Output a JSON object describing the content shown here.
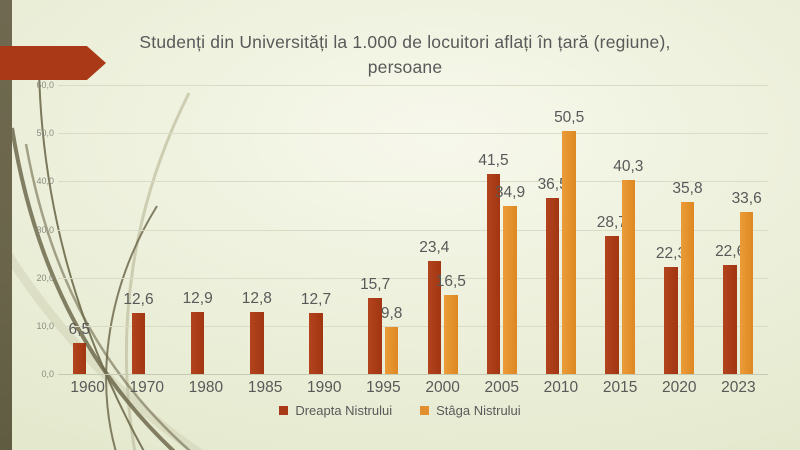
{
  "slide": {
    "title": "Studenți din Universități la 1.000 de locuitori aflați în țară (regiune),\npersoane"
  },
  "colors": {
    "accent_dark_red": "#a83a17",
    "accent_orange": "#e2902f",
    "background_light": "#f7f8ec",
    "background_edge": "#e4e9ce",
    "left_strip_olive": "#6a654a",
    "text_gray": "#595959",
    "gridline": "#dadcc6"
  },
  "chart_data": {
    "type": "bar",
    "title": "Studenți din Universități la 1.000 de locuitori aflați în țară (regiune), persoane",
    "categories": [
      "1960",
      "1970",
      "1980",
      "1985",
      "1990",
      "1995",
      "2000",
      "2005",
      "2010",
      "2015",
      "2020",
      "2023"
    ],
    "series": [
      {
        "name": "Dreapta Nistrului",
        "color": "#a83a17",
        "values": [
          6.5,
          12.6,
          12.9,
          12.8,
          12.7,
          15.7,
          23.4,
          41.5,
          36.5,
          28.7,
          22.3,
          22.6
        ],
        "value_labels": [
          "6,5",
          "12,6",
          "12,9",
          "12,8",
          "12,7",
          "15,7",
          "23,4",
          "41,5",
          "36,5",
          "28,7",
          "22,3",
          "22,6"
        ]
      },
      {
        "name": "Stâga Nistrului",
        "color": "#e2902f",
        "values": [
          null,
          null,
          null,
          null,
          null,
          9.8,
          16.5,
          34.9,
          50.5,
          40.3,
          35.8,
          33.6
        ],
        "value_labels": [
          null,
          null,
          null,
          null,
          null,
          "9,8",
          "16,5",
          "34,9",
          "50,5",
          "40,3",
          "35,8",
          "33,6"
        ]
      }
    ],
    "xlabel": "",
    "ylabel": "",
    "ylim": [
      0,
      60
    ],
    "ytick_step": 10,
    "ytick_labels": [
      "0,0",
      "10,0",
      "20,0",
      "30,0",
      "40,0",
      "50,0",
      "60,0"
    ],
    "grid": true,
    "legend_position": "bottom",
    "decimal_separator": ","
  }
}
